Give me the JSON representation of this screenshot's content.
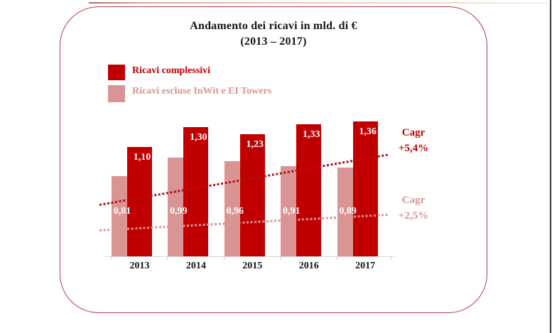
{
  "chart_data": {
    "type": "bar",
    "title": "Andamento dei ricavi in mld. di €",
    "subtitle": "(2013 – 2017)",
    "categories": [
      "2013",
      "2014",
      "2015",
      "2016",
      "2017"
    ],
    "series": [
      {
        "name": "Ricavi complessivi",
        "color": "#C00000",
        "values": [
          1.1,
          1.3,
          1.23,
          1.33,
          1.36
        ],
        "value_labels": [
          "1,10",
          "1,30",
          "1,23",
          "1,33",
          "1,36"
        ],
        "cagr_label": "Cagr",
        "cagr_value": "+5,4%",
        "trend_line": "dotted"
      },
      {
        "name": "Ricavi escluse InWit e EI Towers",
        "color": "#D99494",
        "values": [
          0.81,
          0.99,
          0.96,
          0.91,
          0.89
        ],
        "value_labels": [
          "0,81",
          "0,99",
          "0,96",
          "0,91",
          "0,89"
        ],
        "cagr_label": "Cagr",
        "cagr_value": "+2,5%",
        "trend_line": "dotted"
      }
    ],
    "ylabel": "",
    "xlabel": "",
    "ylim": [
      0,
      1.5
    ],
    "grid": false,
    "y_axis_visible": false,
    "legend_position": "top-left",
    "value_format": "comma-decimal"
  },
  "colors": {
    "primary_series": "#C00000",
    "secondary_series": "#D99494",
    "frame_border": "#B13B45",
    "axis_line": "#d5d5d5",
    "title_text": "#15151e",
    "value_label_text": "#ffffff"
  }
}
